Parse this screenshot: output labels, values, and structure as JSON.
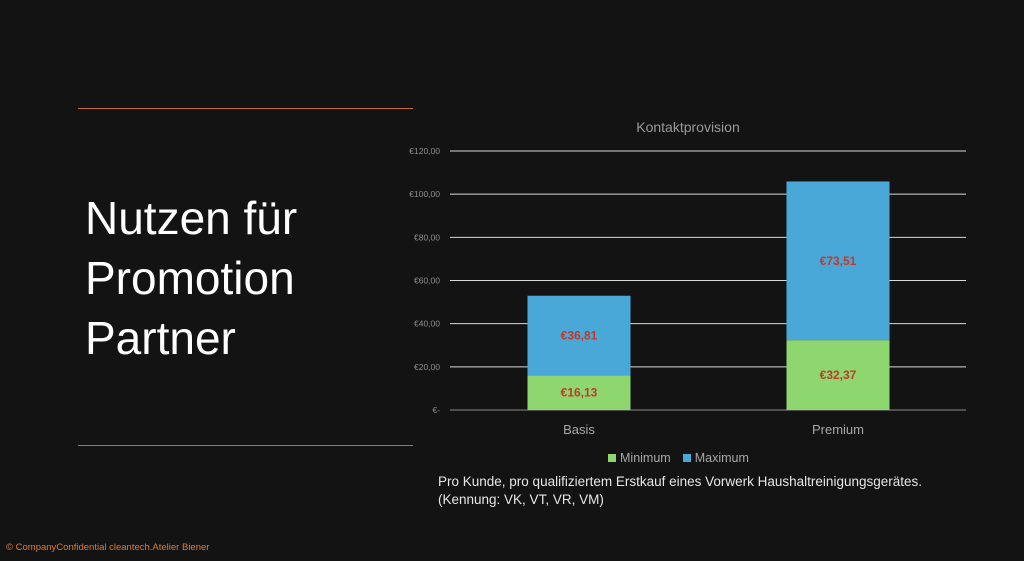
{
  "slide": {
    "title": "Nutzen für\nPromotion\nPartner",
    "caption_line1": "Pro Kunde, pro qualifiziertem Erstkauf eines Vorwerk Haushaltreinigungsgerätes.",
    "caption_line2": "(Kennung: VK, VT, VR, VM)",
    "footer": "© CompanyConfidential cleantech.Atelier Biener",
    "accent_color": "#c86a2a"
  },
  "chart_data": {
    "type": "bar",
    "stacked": true,
    "title": "Kontaktprovision",
    "categories": [
      "Basis",
      "Premium"
    ],
    "series": [
      {
        "name": "Minimum",
        "values": [
          16.13,
          32.37
        ],
        "labels": [
          "€16,13",
          "€32,37"
        ],
        "color": "#8ed66f"
      },
      {
        "name": "Maximum",
        "values": [
          36.81,
          73.51
        ],
        "labels": [
          "€36,81",
          "€73,51"
        ],
        "color": "#4aa8d8"
      }
    ],
    "ylim": [
      0,
      120
    ],
    "yticks": [
      0,
      20,
      40,
      60,
      80,
      100,
      120
    ],
    "ytick_labels": [
      "€-",
      "€20,00",
      "€40,00",
      "€60,00",
      "€80,00",
      "€100,00",
      "€120,00"
    ],
    "xlabel": "",
    "ylabel": "",
    "grid": true,
    "legend_position": "bottom",
    "data_label_color": "#c0392b"
  }
}
